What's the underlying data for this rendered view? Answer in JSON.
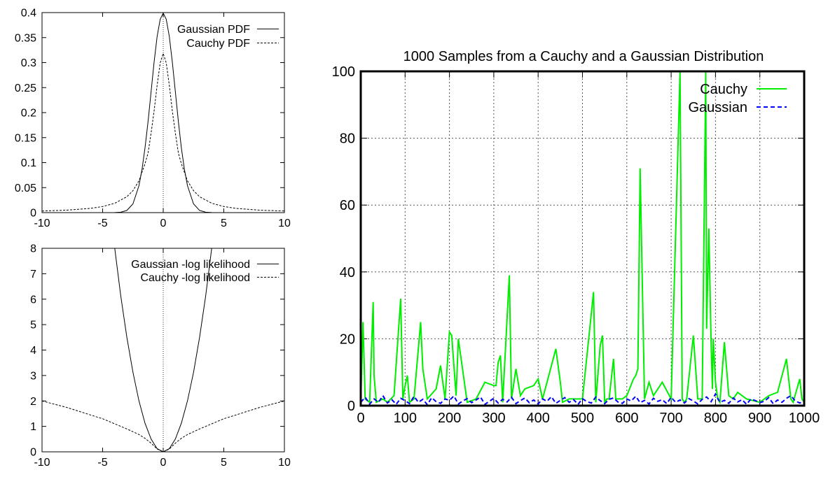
{
  "chart_data": [
    {
      "type": "line",
      "title": "",
      "xlabel": "",
      "ylabel": "",
      "xlim": [
        -10,
        10
      ],
      "ylim": [
        0,
        0.4
      ],
      "xticks": [
        -10,
        -5,
        0,
        5,
        10
      ],
      "yticks": [
        0,
        0.05,
        0.1,
        0.15,
        0.2,
        0.25,
        0.3,
        0.35,
        0.4
      ],
      "grid": false,
      "legend_position": "top-right",
      "series": [
        {
          "name": "Gaussian PDF",
          "style": "solid",
          "x": [
            -10,
            -5,
            -4,
            -3.5,
            -3,
            -2.5,
            -2,
            -1.75,
            -1.5,
            -1.25,
            -1,
            -0.75,
            -0.5,
            -0.25,
            0,
            0.25,
            0.5,
            0.75,
            1,
            1.25,
            1.5,
            1.75,
            2,
            2.5,
            3,
            3.5,
            4,
            5,
            10
          ],
          "y": [
            0,
            0,
            0.0001,
            0.0009,
            0.0044,
            0.0175,
            0.054,
            0.0863,
            0.1295,
            0.1826,
            0.242,
            0.3011,
            0.3521,
            0.3867,
            0.3989,
            0.3867,
            0.3521,
            0.3011,
            0.242,
            0.1826,
            0.1295,
            0.0863,
            0.054,
            0.0175,
            0.0044,
            0.0009,
            0.0001,
            0,
            0
          ]
        },
        {
          "name": "Cauchy PDF",
          "style": "dashed",
          "x": [
            -10,
            -8,
            -6,
            -5,
            -4,
            -3,
            -2.5,
            -2,
            -1.5,
            -1.25,
            -1,
            -0.75,
            -0.5,
            -0.25,
            0,
            0.25,
            0.5,
            0.75,
            1,
            1.25,
            1.5,
            2,
            2.5,
            3,
            4,
            5,
            6,
            8,
            10
          ],
          "y": [
            0.0032,
            0.0049,
            0.0086,
            0.0122,
            0.0187,
            0.0318,
            0.0439,
            0.0637,
            0.0979,
            0.1194,
            0.1592,
            0.2037,
            0.2546,
            0.2996,
            0.3183,
            0.2996,
            0.2546,
            0.2037,
            0.1592,
            0.1194,
            0.0979,
            0.0637,
            0.0439,
            0.0318,
            0.0187,
            0.0122,
            0.0086,
            0.0049,
            0.0032
          ]
        }
      ]
    },
    {
      "type": "line",
      "title": "",
      "xlabel": "",
      "ylabel": "",
      "xlim": [
        -10,
        10
      ],
      "ylim": [
        0,
        8
      ],
      "xticks": [
        -10,
        -5,
        0,
        5,
        10
      ],
      "yticks": [
        0,
        1,
        2,
        3,
        4,
        5,
        6,
        7,
        8
      ],
      "grid": false,
      "legend_position": "top-right",
      "series": [
        {
          "name": "Gaussian -log likelihood",
          "style": "solid",
          "x": [
            -4,
            -3.5,
            -3,
            -2.5,
            -2,
            -1.5,
            -1,
            -0.5,
            0,
            0.5,
            1,
            1.5,
            2,
            2.5,
            3,
            3.5,
            4
          ],
          "y": [
            8,
            6.125,
            4.5,
            3.125,
            2,
            1.125,
            0.5,
            0.125,
            0,
            0.125,
            0.5,
            1.125,
            2,
            3.125,
            4.5,
            6.125,
            8
          ]
        },
        {
          "name": "Cauchy -log likelihood",
          "style": "dashed",
          "x": [
            -10,
            -8,
            -6,
            -5,
            -4,
            -3,
            -2,
            -1.5,
            -1,
            -0.5,
            0,
            0.5,
            1,
            1.5,
            2,
            3,
            4,
            5,
            6,
            8,
            10
          ],
          "y": [
            2.0,
            1.75,
            1.45,
            1.3,
            1.1,
            0.9,
            0.68,
            0.53,
            0.34,
            0.11,
            0,
            0.11,
            0.34,
            0.53,
            0.68,
            0.9,
            1.1,
            1.3,
            1.45,
            1.75,
            2.0
          ]
        }
      ]
    },
    {
      "type": "line",
      "title": "1000 Samples from a Cauchy and a Gaussian Distribution",
      "xlabel": "",
      "ylabel": "",
      "xlim": [
        0,
        1000
      ],
      "ylim": [
        0,
        100
      ],
      "xticks": [
        0,
        100,
        200,
        300,
        400,
        500,
        600,
        700,
        800,
        900,
        1000
      ],
      "yticks": [
        0,
        20,
        40,
        60,
        80,
        100
      ],
      "grid": true,
      "legend_position": "top-right",
      "series": [
        {
          "name": "Cauchy",
          "color": "#00ee00",
          "style": "solid",
          "x": [
            0,
            5,
            10,
            20,
            28,
            30,
            35,
            50,
            60,
            75,
            90,
            95,
            100,
            105,
            110,
            120,
            135,
            140,
            150,
            170,
            180,
            190,
            200,
            205,
            215,
            220,
            240,
            260,
            280,
            300,
            305,
            310,
            315,
            320,
            335,
            340,
            350,
            360,
            370,
            390,
            400,
            410,
            420,
            440,
            450,
            455,
            470,
            500,
            525,
            530,
            540,
            545,
            550,
            555,
            560,
            570,
            575,
            590,
            600,
            615,
            620,
            625,
            630,
            640,
            650,
            660,
            680,
            700,
            720,
            725,
            730,
            735,
            750,
            760,
            770,
            778,
            780,
            785,
            790,
            793,
            795,
            800,
            805,
            810,
            820,
            830,
            840,
            850,
            870,
            900,
            920,
            940,
            960,
            970,
            975,
            990,
            995,
            1000
          ],
          "y": [
            1,
            25,
            2,
            1,
            31,
            9,
            1,
            2,
            1,
            3,
            32,
            2,
            6,
            9,
            1,
            2,
            25,
            11,
            2,
            5,
            12,
            2,
            22,
            21,
            3,
            20,
            1,
            2,
            7,
            6,
            6,
            13,
            15,
            1,
            39,
            2,
            11,
            3,
            5,
            6,
            8,
            2,
            7,
            17,
            7,
            1,
            2,
            2,
            34,
            1,
            18,
            21,
            1,
            2,
            2,
            14,
            2,
            2,
            3,
            8,
            9,
            11,
            71,
            2,
            7,
            3,
            7,
            2,
            100,
            2,
            1,
            2,
            21,
            2,
            2,
            100,
            23,
            53,
            19,
            5,
            20,
            7,
            2,
            1,
            19,
            3,
            2,
            4,
            2,
            1,
            3,
            4,
            14,
            2,
            1,
            8,
            2,
            1
          ]
        },
        {
          "name": "Gaussian",
          "color": "#0000ff",
          "style": "dashed",
          "x": [
            0,
            10,
            20,
            30,
            40,
            50,
            60,
            70,
            80,
            90,
            100,
            110,
            120,
            130,
            140,
            150,
            160,
            170,
            180,
            190,
            200,
            210,
            220,
            230,
            240,
            250,
            260,
            270,
            280,
            290,
            300,
            310,
            320,
            330,
            340,
            350,
            360,
            370,
            380,
            390,
            400,
            410,
            420,
            430,
            440,
            450,
            460,
            470,
            480,
            490,
            500,
            510,
            520,
            530,
            540,
            550,
            560,
            570,
            580,
            590,
            600,
            610,
            620,
            630,
            640,
            650,
            660,
            670,
            680,
            690,
            700,
            710,
            720,
            730,
            740,
            750,
            760,
            770,
            780,
            790,
            800,
            810,
            820,
            830,
            840,
            850,
            860,
            870,
            880,
            890,
            900,
            910,
            920,
            930,
            940,
            950,
            960,
            970,
            980,
            990,
            1000
          ],
          "y": [
            1,
            2.5,
            0.5,
            2,
            1,
            3,
            0.8,
            1.8,
            0.4,
            2.2,
            1.5,
            0.6,
            2.8,
            1,
            1.9,
            0.3,
            2.4,
            1.2,
            0.7,
            2,
            1.6,
            2.9,
            0.5,
            1.4,
            2.1,
            0.9,
            1.7,
            2.6,
            0.4,
            1.3,
            2.2,
            0.8,
            1.9,
            1.1,
            2.5,
            0.6,
            1.5,
            2.3,
            0.9,
            1.7,
            0.5,
            2,
            1.3,
            2.7,
            0.7,
            1.6,
            2.4,
            1,
            1.8,
            0.4,
            2.1,
            1.2,
            0.8,
            2.6,
            1.5,
            0.6,
            1.9,
            2.3,
            1.1,
            0.7,
            2,
            1.4,
            2.8,
            0.9,
            1.6,
            0.5,
            2.2,
            1.3,
            1.8,
            0.6,
            2.5,
            1,
            1.7,
            0.8,
            2.1,
            1.4,
            0.5,
            1.9,
            2.6,
            1.2,
            3.5,
            1,
            1.6,
            0.7,
            2.3,
            1.1,
            1.8,
            0.4,
            2,
            1.5,
            0.9,
            1.3,
            2.4,
            0.6,
            1.7,
            1,
            2.2,
            3,
            1.4,
            0.8,
            1.2
          ]
        }
      ]
    }
  ]
}
